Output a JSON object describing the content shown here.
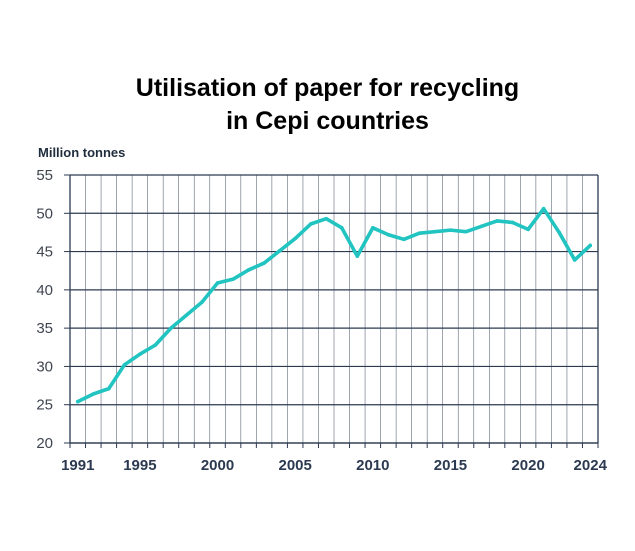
{
  "chart_data": {
    "type": "line",
    "title_line1": "Utilisation of paper for recycling",
    "title_line2": "in Cepi countries",
    "ylabel": "Million tonnes",
    "xlabel": "",
    "ylim": [
      20,
      55
    ],
    "yticks": [
      "20",
      "25",
      "30",
      "35",
      "40",
      "45",
      "50",
      "55"
    ],
    "xlim": [
      1991,
      2024
    ],
    "xticks": [
      "1991",
      "1995",
      "2000",
      "2005",
      "2010",
      "2015",
      "2020",
      "2024"
    ],
    "grid": true,
    "legend": "none",
    "series": [
      {
        "color": "#21c4c1",
        "x": [
          1991,
          1992,
          1993,
          1994,
          1995,
          1996,
          1997,
          1998,
          1999,
          2000,
          2001,
          2002,
          2003,
          2004,
          2005,
          2006,
          2007,
          2008,
          2009,
          2010,
          2011,
          2012,
          2013,
          2014,
          2015,
          2016,
          2017,
          2018,
          2019,
          2020,
          2021,
          2022,
          2023,
          2024
        ],
        "y": [
          25.4,
          26.4,
          27.1,
          30.2,
          31.6,
          32.8,
          35.0,
          36.7,
          38.4,
          40.9,
          41.4,
          42.6,
          43.5,
          45.1,
          46.7,
          48.6,
          49.3,
          48.1,
          44.4,
          48.1,
          47.2,
          46.6,
          47.4,
          47.6,
          47.8,
          47.6,
          48.3,
          49.0,
          48.8,
          47.9,
          50.6,
          47.5,
          43.9,
          45.8
        ]
      }
    ],
    "colors": {
      "grid": "#2b3a50",
      "axis": "#2b3a50"
    }
  }
}
